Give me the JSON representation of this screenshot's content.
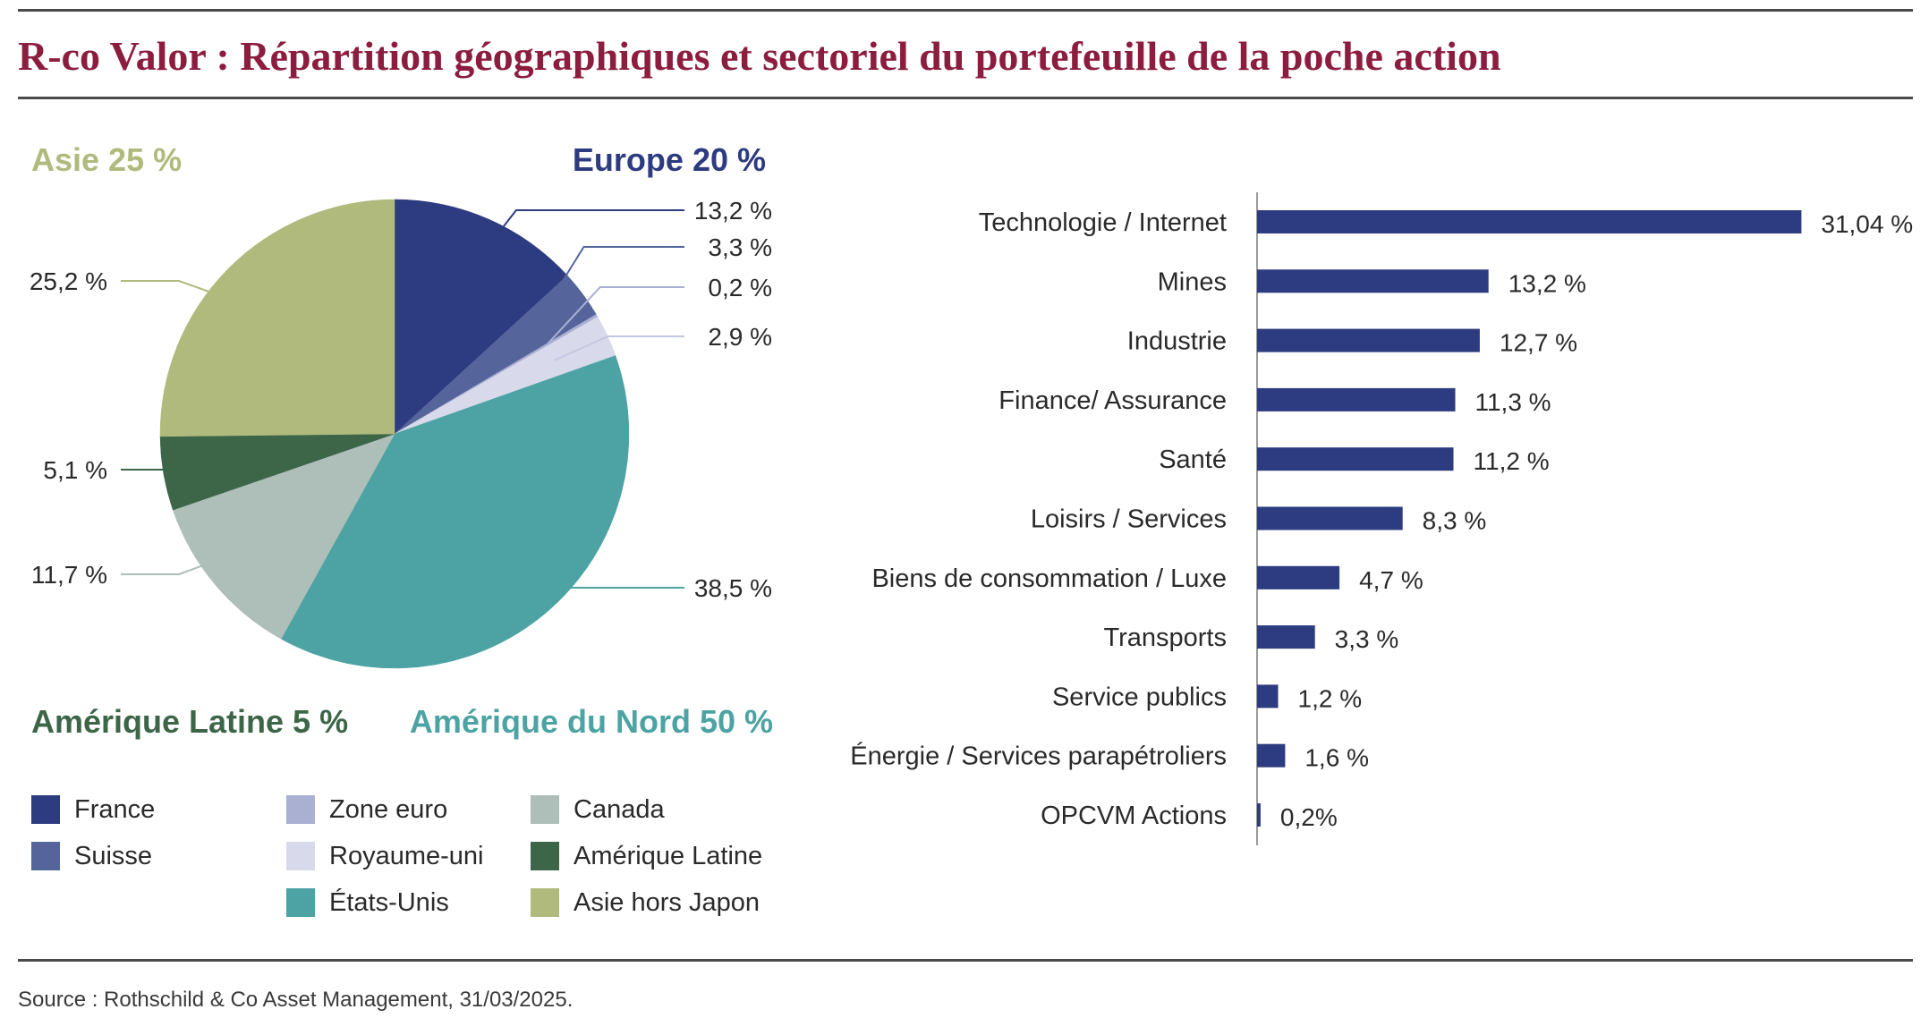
{
  "title": "R-co Valor : Répartition géographiques et sectoriel du portefeuille de la poche action",
  "source": "Source : Rothschild & Co Asset Management, 31/03/2025.",
  "colors": {
    "title": "#8c1d3f",
    "france": "#2d3b80",
    "suisse": "#55659c",
    "zone_euro": "#a9b0d2",
    "royaume_uni": "#d8daeb",
    "etats_unis": "#4da3a3",
    "canada": "#aebeb8",
    "amerique_latine": "#3d6649",
    "asie_hors_japon": "#b0ba7d",
    "bar": "#2d3b80"
  },
  "regions": {
    "asie": "Asie 25 %",
    "europe": "Europe 20 %",
    "amerique_latine": "Amérique Latine 5 %",
    "amerique_du_nord": "Amérique du Nord 50 %"
  },
  "legend": [
    {
      "label": "France",
      "color": "#2d3b80"
    },
    {
      "label": "Suisse",
      "color": "#55659c"
    },
    {
      "label": "Zone euro",
      "color": "#a9b0d2"
    },
    {
      "label": "Royaume-uni",
      "color": "#d8daeb"
    },
    {
      "label": "États-Unis",
      "color": "#4da3a3"
    },
    {
      "label": "Canada",
      "color": "#aebeb8"
    },
    {
      "label": "Amérique Latine",
      "color": "#3d6649"
    },
    {
      "label": "Asie hors Japon",
      "color": "#b0ba7d"
    }
  ],
  "chart_data": [
    {
      "type": "pie",
      "slices": [
        {
          "name": "France",
          "value": 13.2,
          "label": "13,2 %",
          "color": "#2d3b80"
        },
        {
          "name": "Suisse",
          "value": 3.3,
          "label": "3,3 %",
          "color": "#55659c"
        },
        {
          "name": "Zone euro",
          "value": 0.2,
          "label": "0,2 %",
          "color": "#a9b0d2"
        },
        {
          "name": "Royaume-uni",
          "value": 2.9,
          "label": "2,9 %",
          "color": "#d8daeb"
        },
        {
          "name": "États-Unis",
          "value": 38.5,
          "label": "38,5 %",
          "color": "#4da3a3"
        },
        {
          "name": "Canada",
          "value": 11.7,
          "label": "11,7 %",
          "color": "#aebeb8"
        },
        {
          "name": "Amérique Latine",
          "value": 5.1,
          "label": "5,1 %",
          "color": "#3d6649"
        },
        {
          "name": "Asie hors Japon",
          "value": 25.2,
          "label": "25,2 %",
          "color": "#b0ba7d"
        }
      ],
      "legend_position": "bottom"
    },
    {
      "type": "bar",
      "orientation": "horizontal",
      "categories": [
        "Technologie / Internet",
        "Mines",
        "Industrie",
        "Finance/ Assurance",
        "Santé",
        "Loisirs / Services",
        "Biens de consommation / Luxe",
        "Transports",
        "Service publics",
        "Énergie / Services parapétroliers",
        "OPCVM Actions"
      ],
      "values": [
        31.04,
        13.2,
        12.7,
        11.3,
        11.2,
        8.3,
        4.7,
        3.3,
        1.2,
        1.6,
        0.2
      ],
      "value_labels": [
        "31,04 %",
        "13,2 %",
        "12,7 %",
        "11,3 %",
        "11,2 %",
        "8,3 %",
        "4,7 %",
        "3,3 %",
        "1,2 %",
        "1,6 %",
        "0,2%"
      ],
      "grid": false
    }
  ]
}
